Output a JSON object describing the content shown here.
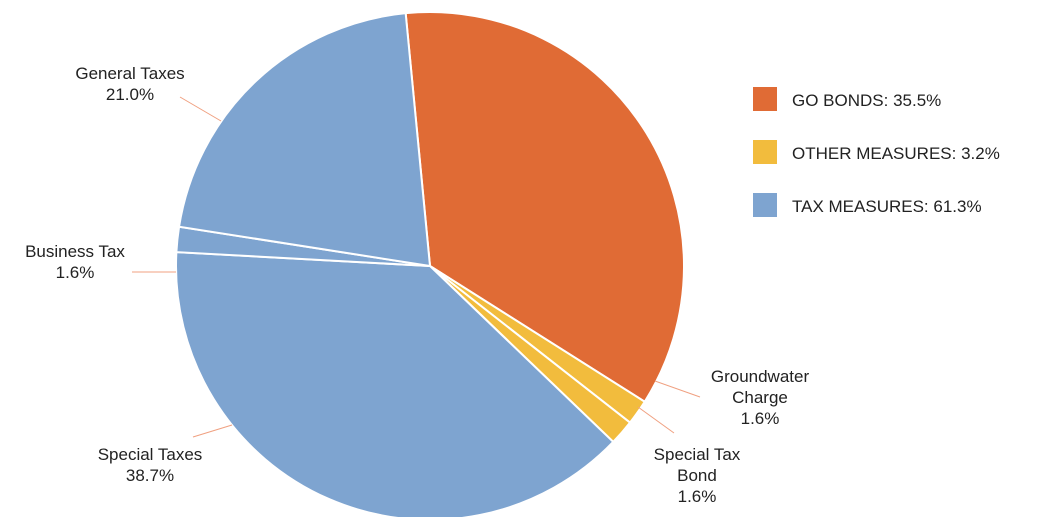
{
  "chart_data": {
    "type": "pie",
    "title": "",
    "slices": [
      {
        "name": "GO Bonds",
        "value": 35.5,
        "group": "go",
        "label_lines": [],
        "color": "#e06b35"
      },
      {
        "name": "Groundwater Charge",
        "value": 1.6,
        "group": "other",
        "label_lines": [
          "Groundwater",
          "Charge",
          "1.6%"
        ],
        "color": "#f2bc3d"
      },
      {
        "name": "Special Tax Bond",
        "value": 1.6,
        "group": "other",
        "label_lines": [
          "Special Tax",
          "Bond",
          "1.6%"
        ],
        "color": "#f2bc3d"
      },
      {
        "name": "Special Taxes",
        "value": 38.7,
        "group": "tax",
        "label_lines": [
          "Special Taxes",
          "38.7%"
        ],
        "color": "#7ea4d0"
      },
      {
        "name": "Business Tax",
        "value": 1.6,
        "group": "tax",
        "label_lines": [
          "Business Tax",
          "1.6%"
        ],
        "color": "#7ea4d0"
      },
      {
        "name": "General Taxes",
        "value": 21.0,
        "group": "tax",
        "label_lines": [
          "General Taxes",
          "21.0%"
        ],
        "color": "#7ea4d0"
      }
    ],
    "legend": {
      "placement": "right",
      "items": [
        {
          "label": "GO BONDS: 35.5%",
          "color": "#e06b35"
        },
        {
          "label": "OTHER MEASURES: 3.2%",
          "color": "#f2bc3d"
        },
        {
          "label": "TAX MEASURES: 61.3%",
          "color": "#7ea4d0"
        }
      ]
    },
    "leader_color": "#f0a080"
  }
}
